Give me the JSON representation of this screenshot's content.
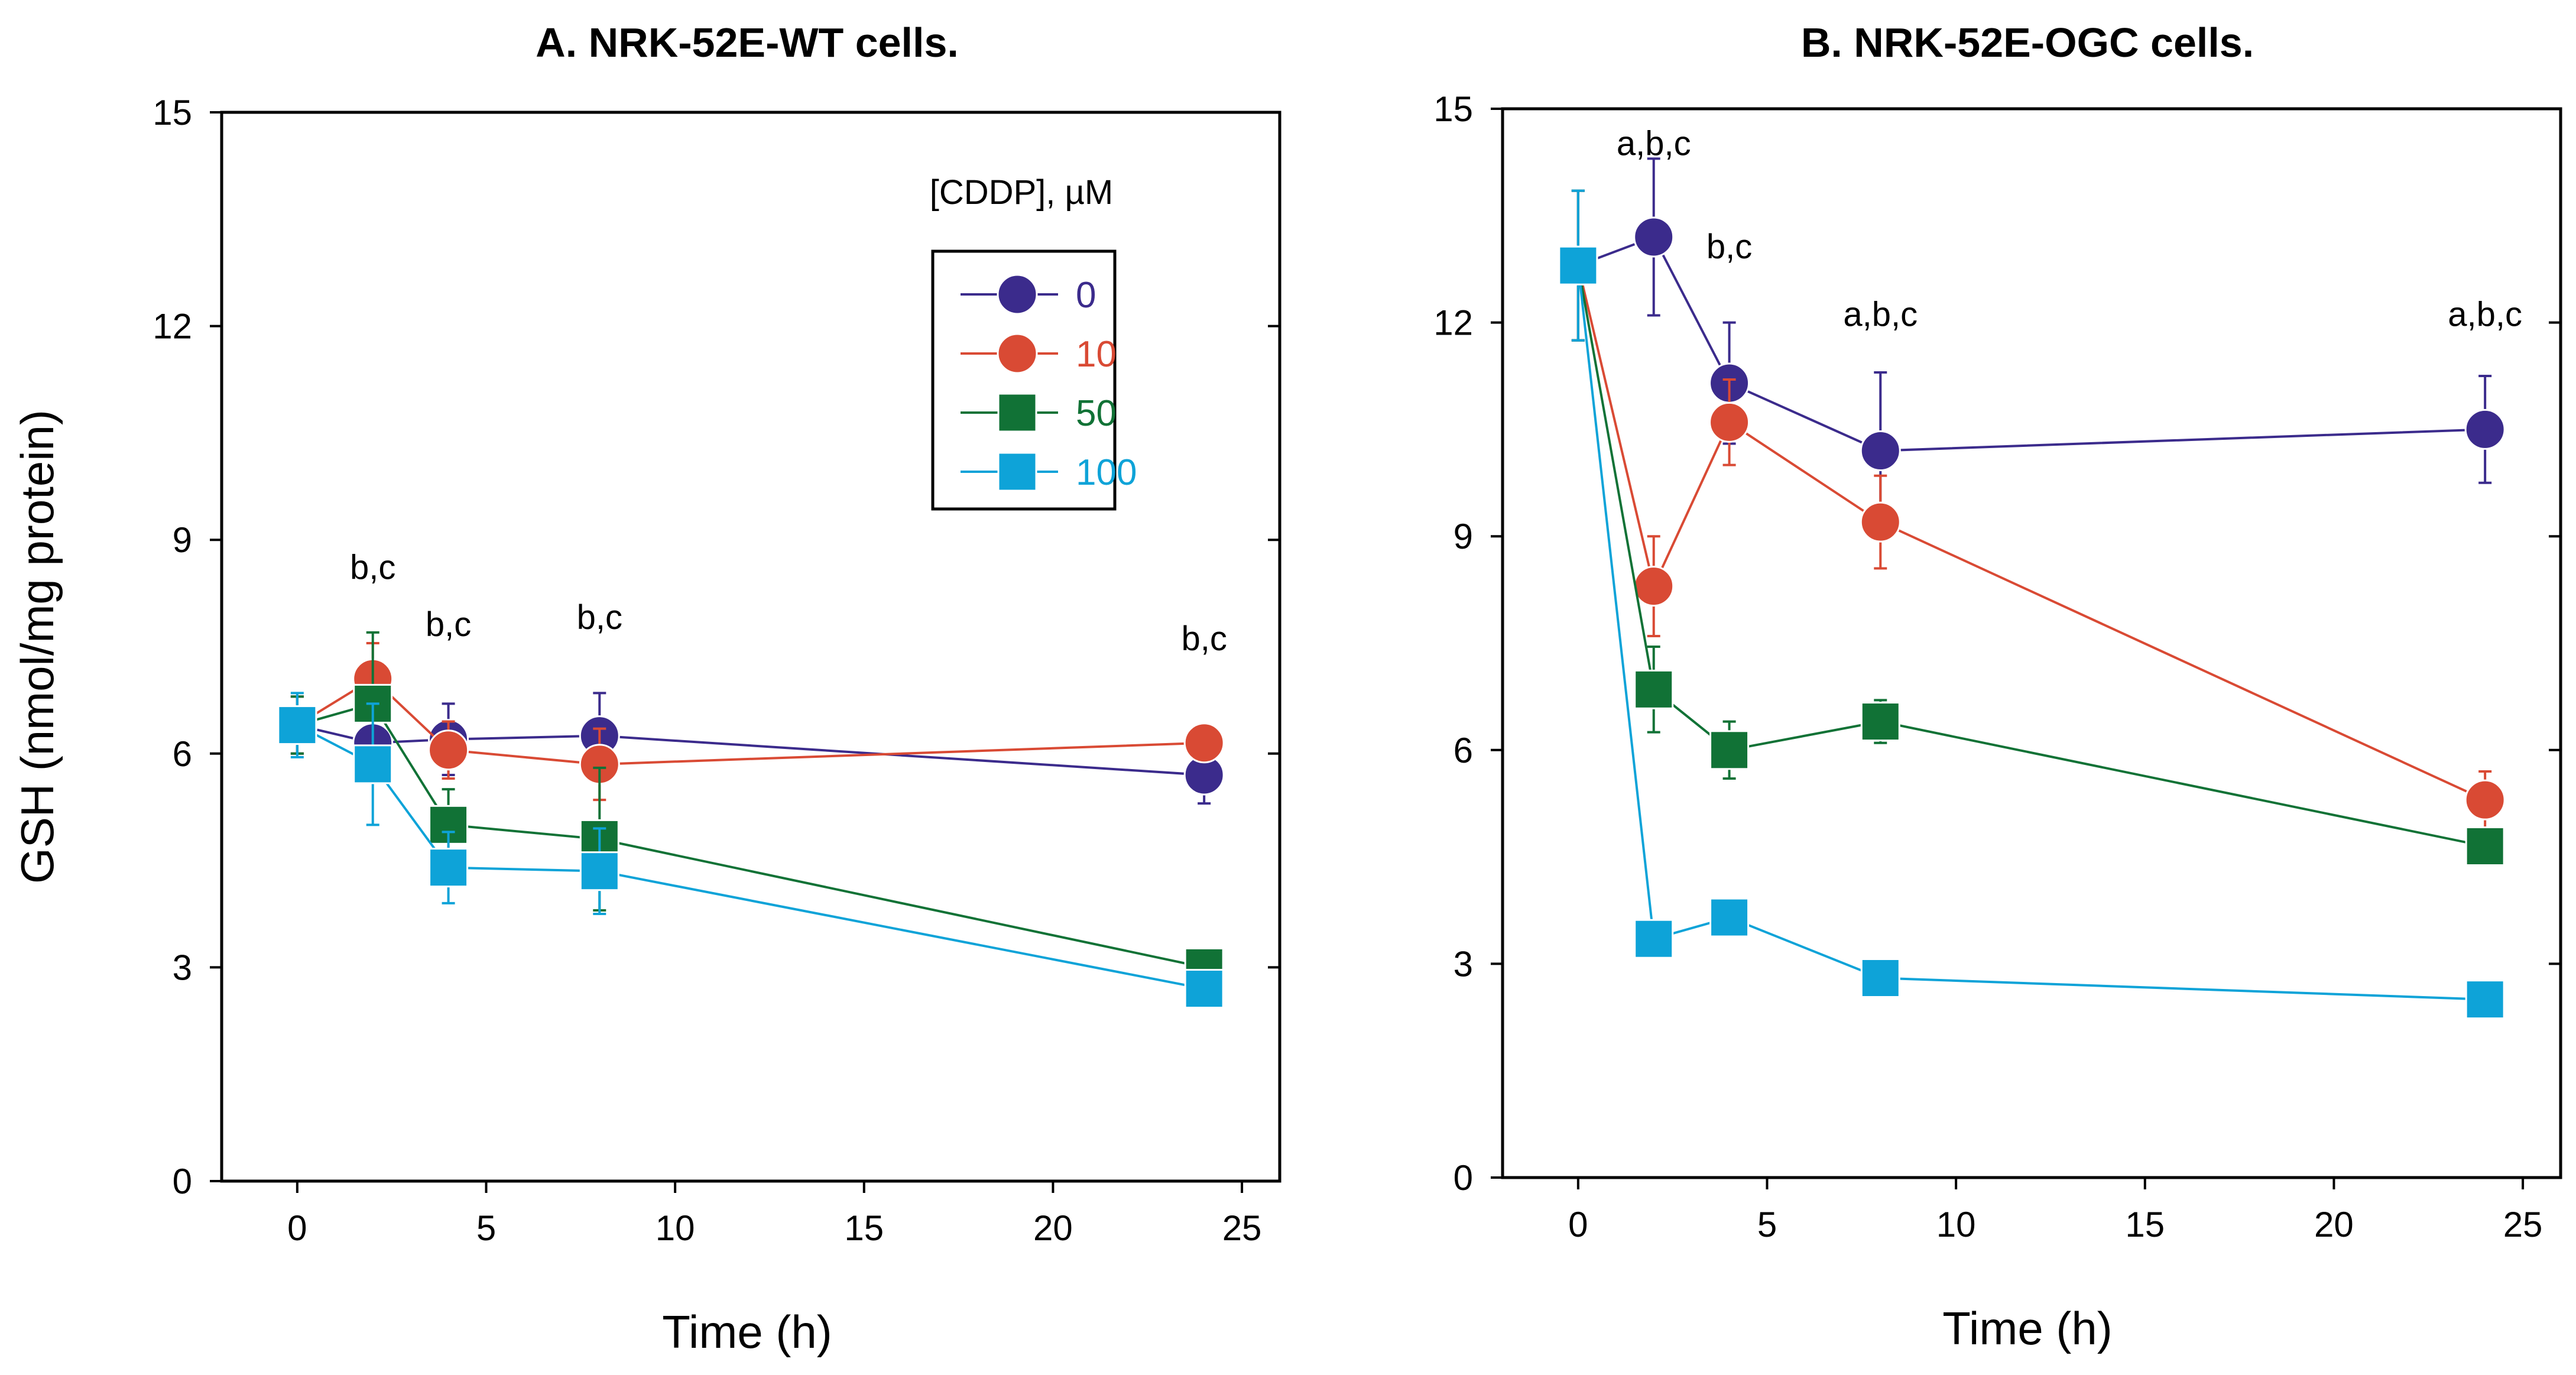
{
  "chart_data": [
    {
      "type": "line",
      "title": "A. NRK-52E-WT cells.",
      "xlabel": "Time (h)",
      "ylabel": "GSH (nmol/mg protein)",
      "xlim": [
        -2,
        26
      ],
      "ylim": [
        0,
        15
      ],
      "xticks": [
        0,
        5,
        10,
        15,
        20,
        25
      ],
      "yticks": [
        0,
        3,
        6,
        9,
        12,
        15
      ],
      "legend": {
        "title": "[CDDP], µM",
        "placement": "top-right",
        "entries": [
          "0",
          "10",
          "50",
          "100"
        ]
      },
      "series": [
        {
          "name": "0",
          "marker": "circle",
          "color": "#3b2b8c",
          "x": [
            0,
            2,
            4,
            8,
            24
          ],
          "y": [
            6.4,
            6.15,
            6.2,
            6.25,
            5.7
          ],
          "err": [
            0.4,
            0.5,
            0.5,
            0.6,
            0.4
          ]
        },
        {
          "name": "10",
          "marker": "circle",
          "color": "#d94a34",
          "x": [
            0,
            2,
            4,
            8,
            24
          ],
          "y": [
            6.4,
            7.05,
            6.05,
            5.85,
            6.15
          ],
          "err": [
            0.4,
            0.5,
            0.4,
            0.5,
            0.2
          ]
        },
        {
          "name": "50",
          "marker": "square",
          "color": "#117236",
          "x": [
            0,
            2,
            4,
            8,
            24
          ],
          "y": [
            6.4,
            6.7,
            5.0,
            4.8,
            3.0
          ],
          "err": [
            0.4,
            1.0,
            0.5,
            1.0,
            0.2
          ]
        },
        {
          "name": "100",
          "marker": "square",
          "color": "#0ea3d8",
          "x": [
            0,
            2,
            4,
            8,
            24
          ],
          "y": [
            6.4,
            5.85,
            4.4,
            4.35,
            2.7
          ],
          "err": [
            0.45,
            0.85,
            0.5,
            0.6,
            0.25
          ]
        }
      ],
      "annotations": [
        {
          "text": "b,c",
          "x": 2,
          "y": 8.45
        },
        {
          "text": "b,c",
          "x": 4,
          "y": 7.65
        },
        {
          "text": "b,c",
          "x": 8,
          "y": 7.75
        },
        {
          "text": "b,c",
          "x": 24,
          "y": 7.45
        }
      ]
    },
    {
      "type": "line",
      "title": "B. NRK-52E-OGC cells.",
      "xlabel": "Time (h)",
      "ylabel": "",
      "xlim": [
        -2,
        26
      ],
      "ylim": [
        0,
        15
      ],
      "xticks": [
        0,
        5,
        10,
        15,
        20,
        25
      ],
      "yticks": [
        0,
        3,
        6,
        9,
        12,
        15
      ],
      "series": [
        {
          "name": "0",
          "marker": "circle",
          "color": "#3b2b8c",
          "x": [
            0,
            2,
            4,
            8,
            24
          ],
          "y": [
            12.8,
            13.2,
            11.15,
            10.2,
            10.5
          ],
          "err": [
            1.05,
            1.1,
            0.85,
            1.1,
            0.75
          ]
        },
        {
          "name": "10",
          "marker": "circle",
          "color": "#d94a34",
          "x": [
            0,
            2,
            4,
            8,
            24
          ],
          "y": [
            12.8,
            8.3,
            10.6,
            9.2,
            5.3
          ],
          "err": [
            1.05,
            0.7,
            0.6,
            0.65,
            0.4
          ]
        },
        {
          "name": "50",
          "marker": "square",
          "color": "#117236",
          "x": [
            0,
            2,
            4,
            8,
            24
          ],
          "y": [
            12.8,
            6.85,
            6.0,
            6.4,
            4.65
          ],
          "err": [
            1.05,
            0.6,
            0.4,
            0.3,
            0.2
          ]
        },
        {
          "name": "100",
          "marker": "square",
          "color": "#0ea3d8",
          "x": [
            0,
            2,
            4,
            8,
            24
          ],
          "y": [
            12.8,
            3.35,
            3.65,
            2.8,
            2.5
          ],
          "err": [
            1.05,
            0.2,
            0.2,
            0.2,
            0.15
          ]
        }
      ],
      "annotations": [
        {
          "text": "a,b,c",
          "x": 2,
          "y": 14.35
        },
        {
          "text": "b,c",
          "x": 4,
          "y": 12.9
        },
        {
          "text": "a,b,c",
          "x": 8,
          "y": 11.95
        },
        {
          "text": "a,b,c",
          "x": 24,
          "y": 11.95
        }
      ]
    }
  ]
}
